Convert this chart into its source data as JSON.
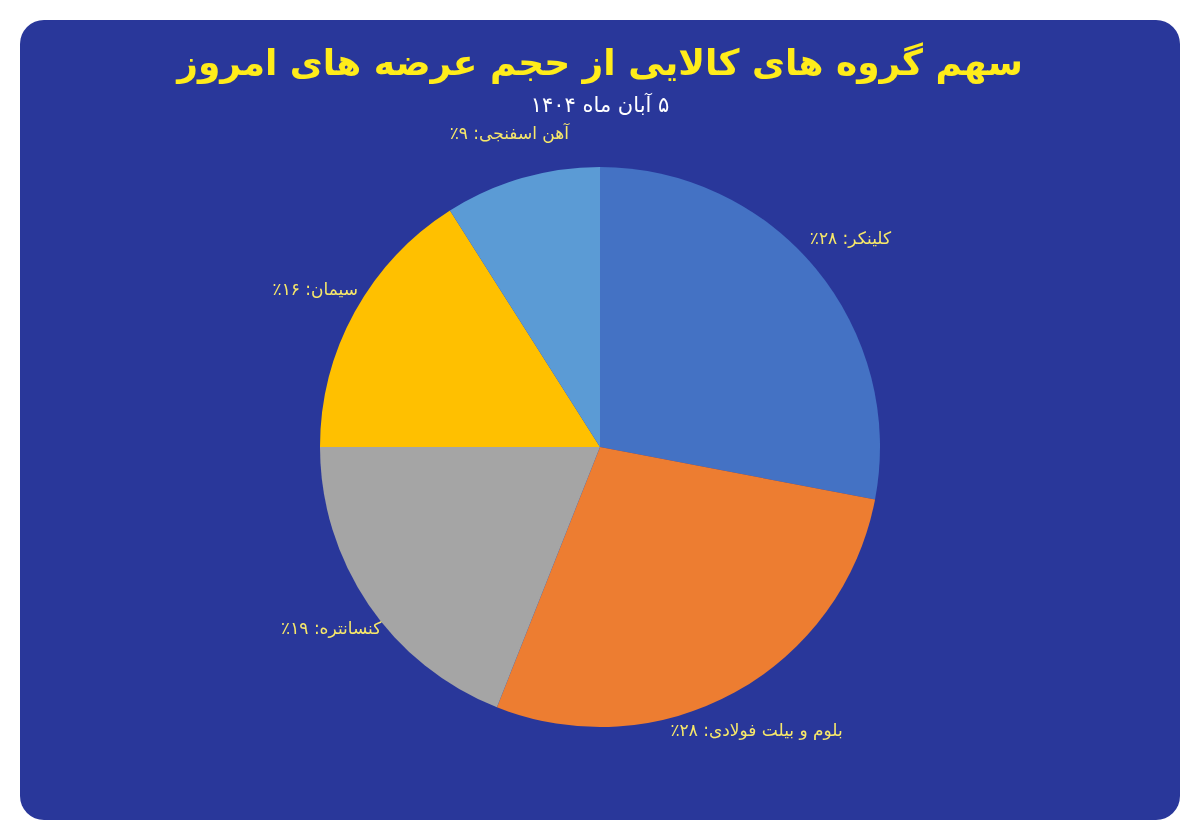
{
  "chart_data": {
    "type": "pie",
    "title": "سهم گروه های کالایی از حجم عرضه های امروز",
    "subtitle": "۵ آبان ماه ۱۴۰۴",
    "categories": [
      "کلینکر",
      "بلوم و بیلت فولادی",
      "کنسانتره",
      "سیمان",
      "آهن اسفنجی"
    ],
    "values": [
      28,
      28,
      19,
      16,
      9
    ],
    "colors": [
      "#4472c4",
      "#ed7d31",
      "#a5a5a5",
      "#ffc000",
      "#5b9bd5"
    ],
    "value_labels": [
      "۲۸٪",
      "۲۸٪",
      "۱۹٪",
      "۱۶٪",
      "۹٪"
    ],
    "legend": false
  }
}
